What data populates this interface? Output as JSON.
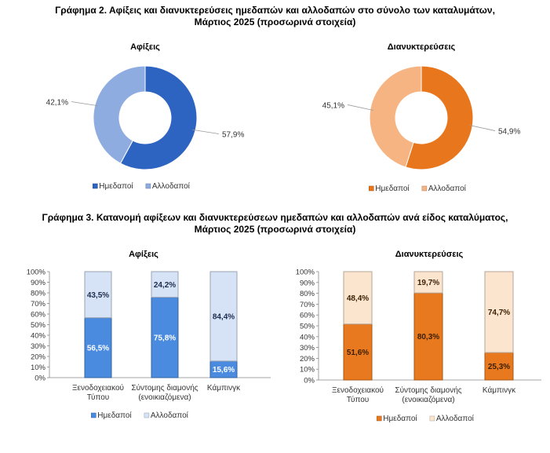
{
  "figure2": {
    "title_line1": "Γράφημα 2. Αφίξεις και διανυκτερεύσεις ημεδαπών και αλλοδαπών στο σύνολο των καταλυμάτων,",
    "title_line2": "Μάρτιος 2025  (προσωρινά στοιχεία)"
  },
  "figure3": {
    "title_line1": "Γράφημα 3. Κατανομή αφίξεων και διανυκτερεύσεων ημεδαπών και αλλοδαπών ανά είδος καταλύματος,",
    "title_line2": "Μάρτιος 2025  (προσωρινά στοιχεία)"
  },
  "chart_data": [
    {
      "type": "pie",
      "donut": true,
      "title": "Αφίξεις",
      "categories": [
        "Ημεδαποί",
        "Αλλοδαποί"
      ],
      "values": [
        57.9,
        42.1
      ],
      "labels": [
        "57,9%",
        "42,1%"
      ],
      "colors": [
        "#2E64C1",
        "#8FACE0"
      ],
      "legend": "bottom"
    },
    {
      "type": "pie",
      "donut": true,
      "title": "Διανυκτερεύσεις",
      "categories": [
        "Ημεδαποί",
        "Αλλοδαποί"
      ],
      "values": [
        54.9,
        45.1
      ],
      "labels": [
        "54,9%",
        "45,1%"
      ],
      "colors": [
        "#E8761C",
        "#F5B482"
      ],
      "legend": "bottom"
    },
    {
      "type": "bar",
      "stacked": true,
      "title": "Αφίξεις",
      "categories": [
        [
          "Ξενοδοχειακού",
          "Τύπου"
        ],
        [
          "Σύντομης διαμονής",
          "(ενοικιαζόμενα)"
        ],
        [
          "Κάμπινγκ"
        ]
      ],
      "series": [
        {
          "name": "Ημεδαποί",
          "values": [
            56.5,
            75.8,
            15.6
          ],
          "labels": [
            "56,5%",
            "75,8%",
            "15,6%"
          ],
          "color": "#4A8BE0",
          "label_color": "#ffffff"
        },
        {
          "name": "Αλλοδαποί",
          "values": [
            43.5,
            24.2,
            84.4
          ],
          "labels": [
            "43,5%",
            "24,2%",
            "84,4%"
          ],
          "color": "#D6E3F6",
          "label_color": "#1F2D4D"
        }
      ],
      "yticks": [
        "0%",
        "10%",
        "20%",
        "30%",
        "40%",
        "50%",
        "60%",
        "70%",
        "80%",
        "90%",
        "100%"
      ],
      "ylim": [
        0,
        100
      ],
      "legend": "bottom"
    },
    {
      "type": "bar",
      "stacked": true,
      "title": "Διανυκτερεύσεις",
      "categories": [
        [
          "Ξενοδοχειακού",
          "Τύπου"
        ],
        [
          "Σύντομης διαμονής",
          "(ενοικιαζόμενα)"
        ],
        [
          "Κάμπινγκ"
        ]
      ],
      "series": [
        {
          "name": "Ημεδαποί",
          "values": [
            51.6,
            80.3,
            25.3
          ],
          "labels": [
            "51,6%",
            "80,3%",
            "25,3%"
          ],
          "color": "#E8791F",
          "label_color": "#3A1E00"
        },
        {
          "name": "Αλλοδαποί",
          "values": [
            48.4,
            19.7,
            74.7
          ],
          "labels": [
            "48,4%",
            "19,7%",
            "74,7%"
          ],
          "color": "#FCE5CF",
          "label_color": "#3A1E00"
        }
      ],
      "yticks": [
        "0%",
        "10%",
        "20%",
        "30%",
        "40%",
        "50%",
        "60%",
        "70%",
        "80%",
        "90%",
        "100%"
      ],
      "ylim": [
        0,
        100
      ],
      "legend": "bottom"
    }
  ]
}
